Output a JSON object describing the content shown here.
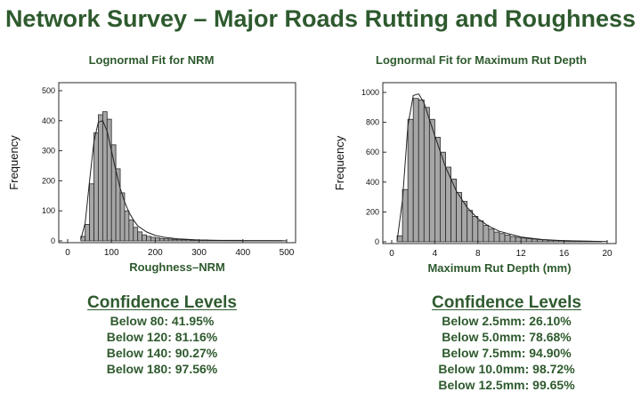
{
  "page": {
    "title": "Network Survey – Major Roads Rutting and Roughness"
  },
  "chart_data": [
    {
      "type": "bar",
      "title": "Lognormal Fit for NRM",
      "xlabel": "Roughness–NRM",
      "ylabel": "Frequency",
      "xlim": [
        0,
        500
      ],
      "ylim": [
        0,
        500
      ],
      "xticks": [
        "0",
        "100",
        "200",
        "300",
        "400",
        "500"
      ],
      "yticks": [
        "0",
        "100",
        "200",
        "300",
        "400",
        "500"
      ],
      "bin_width": 10,
      "bin_starts": [
        30,
        40,
        50,
        60,
        70,
        80,
        90,
        100,
        110,
        120,
        130,
        140,
        150,
        160,
        170,
        180,
        190,
        200,
        210,
        220,
        230,
        240,
        250,
        260,
        270,
        280,
        290,
        300,
        310,
        320,
        330,
        340,
        350,
        360,
        370,
        380,
        390,
        400,
        410,
        420,
        430,
        440,
        450,
        460,
        470,
        480
      ],
      "values": [
        15,
        55,
        190,
        360,
        420,
        430,
        405,
        320,
        240,
        160,
        100,
        70,
        45,
        30,
        20,
        15,
        12,
        10,
        8,
        7,
        6,
        5,
        5,
        4,
        4,
        3,
        3,
        3,
        3,
        2,
        2,
        2,
        2,
        2,
        2,
        2,
        2,
        1,
        1,
        1,
        1,
        1,
        1,
        1,
        1,
        1
      ],
      "fit": {
        "name": "lognormal",
        "x": [
          30,
          40,
          50,
          60,
          70,
          80,
          90,
          100,
          110,
          120,
          130,
          140,
          150,
          160,
          180,
          200,
          220,
          250,
          300,
          350,
          400,
          450,
          500
        ],
        "y": [
          5,
          60,
          200,
          330,
          395,
          400,
          365,
          300,
          235,
          175,
          130,
          95,
          70,
          50,
          30,
          18,
          12,
          7,
          3,
          1.5,
          1,
          0.5,
          0.3
        ]
      },
      "grid": false
    },
    {
      "type": "bar",
      "title": "Lognormal Fit for Maximum Rut Depth",
      "xlabel": "Maximum Rut Depth (mm)",
      "ylabel": "Frequency",
      "xlim": [
        0,
        20
      ],
      "ylim": [
        0,
        1000
      ],
      "xticks": [
        "0",
        "4",
        "8",
        "12",
        "16",
        "20"
      ],
      "yticks": [
        "0",
        "200",
        "400",
        "600",
        "800",
        "1000"
      ],
      "bin_width": 0.5,
      "bin_starts": [
        0.5,
        1,
        1.5,
        2,
        2.5,
        3,
        3.5,
        4,
        4.5,
        5,
        5.5,
        6,
        6.5,
        7,
        7.5,
        8,
        8.5,
        9,
        9.5,
        10,
        10.5,
        11,
        11.5,
        12,
        12.5,
        13,
        13.5,
        14,
        14.5,
        15,
        15.5,
        16,
        16.5,
        17,
        17.5,
        18,
        18.5,
        19
      ],
      "values": [
        40,
        350,
        820,
        960,
        950,
        900,
        820,
        700,
        600,
        500,
        420,
        330,
        270,
        210,
        170,
        140,
        110,
        85,
        65,
        55,
        45,
        35,
        30,
        25,
        20,
        18,
        15,
        13,
        10,
        9,
        8,
        7,
        6,
        5,
        4,
        4,
        3,
        2
      ],
      "fit": {
        "name": "lognormal",
        "x": [
          0.5,
          1,
          1.5,
          2,
          2.5,
          3,
          3.5,
          4,
          5,
          6,
          7,
          8,
          9,
          10,
          12,
          14,
          16,
          18,
          20
        ],
        "y": [
          5,
          280,
          780,
          980,
          990,
          930,
          820,
          710,
          500,
          340,
          230,
          155,
          105,
          70,
          32,
          15,
          8,
          4,
          2
        ]
      },
      "grid": false
    }
  ],
  "confidence": [
    {
      "heading": "Confidence Levels",
      "items": [
        "Below 80: 41.95%",
        "Below 120: 81.16%",
        "Below 140: 90.27%",
        "Below 180: 97.56%"
      ]
    },
    {
      "heading": "Confidence Levels",
      "items": [
        "Below 2.5mm: 26.10%",
        "Below 5.0mm: 78.68%",
        "Below 7.5mm: 94.90%",
        "Below 10.0mm: 98.72%",
        "Below 12.5mm: 99.65%"
      ]
    }
  ],
  "colors": {
    "title": "#2e5a2e",
    "bar_fill": "#a6a6a6",
    "bar_stroke": "#2a2a2a",
    "frame": "#2a2a2a"
  }
}
